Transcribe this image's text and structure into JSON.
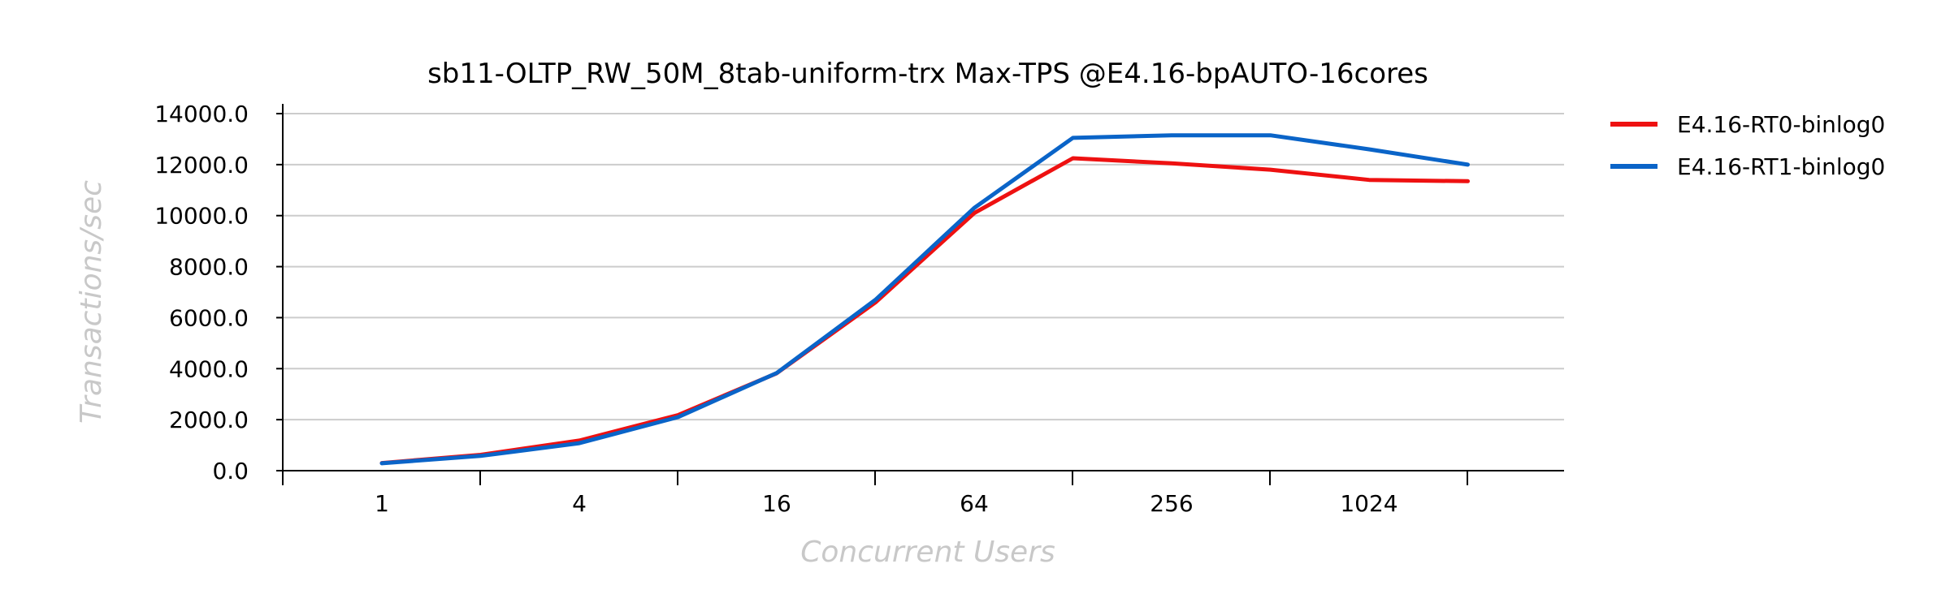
{
  "chart_data": {
    "type": "line",
    "title": "sb11-OLTP_RW_50M_8tab-uniform-trx Max-TPS @E4.16-bpAUTO-16cores",
    "xlabel": "Concurrent Users",
    "ylabel": "Transactions/sec",
    "x": [
      1,
      2,
      4,
      8,
      16,
      32,
      64,
      128,
      256,
      512,
      1024,
      2048
    ],
    "x_scale": "log2",
    "x_tick_labels": [
      "1",
      "4",
      "16",
      "64",
      "256",
      "1024"
    ],
    "x_tick_values": [
      1,
      4,
      16,
      64,
      256,
      1024
    ],
    "y_tick_labels": [
      "0.0",
      "2000.0",
      "4000.0",
      "6000.0",
      "8000.0",
      "10000.0",
      "12000.0",
      "14000.0"
    ],
    "ylim": [
      0,
      14000
    ],
    "grid": "horizontal",
    "legend_position": "right",
    "series": [
      {
        "name": "E4.16-RT0-binlog0",
        "color": "#ee1111",
        "values": [
          300,
          620,
          1180,
          2180,
          3820,
          6600,
          10100,
          12250,
          12050,
          11800,
          11400,
          11350
        ]
      },
      {
        "name": "E4.16-RT1-binlog0",
        "color": "#0a64c8",
        "values": [
          290,
          580,
          1080,
          2100,
          3830,
          6700,
          10300,
          13050,
          13150,
          13150,
          12600,
          12000
        ]
      }
    ]
  }
}
